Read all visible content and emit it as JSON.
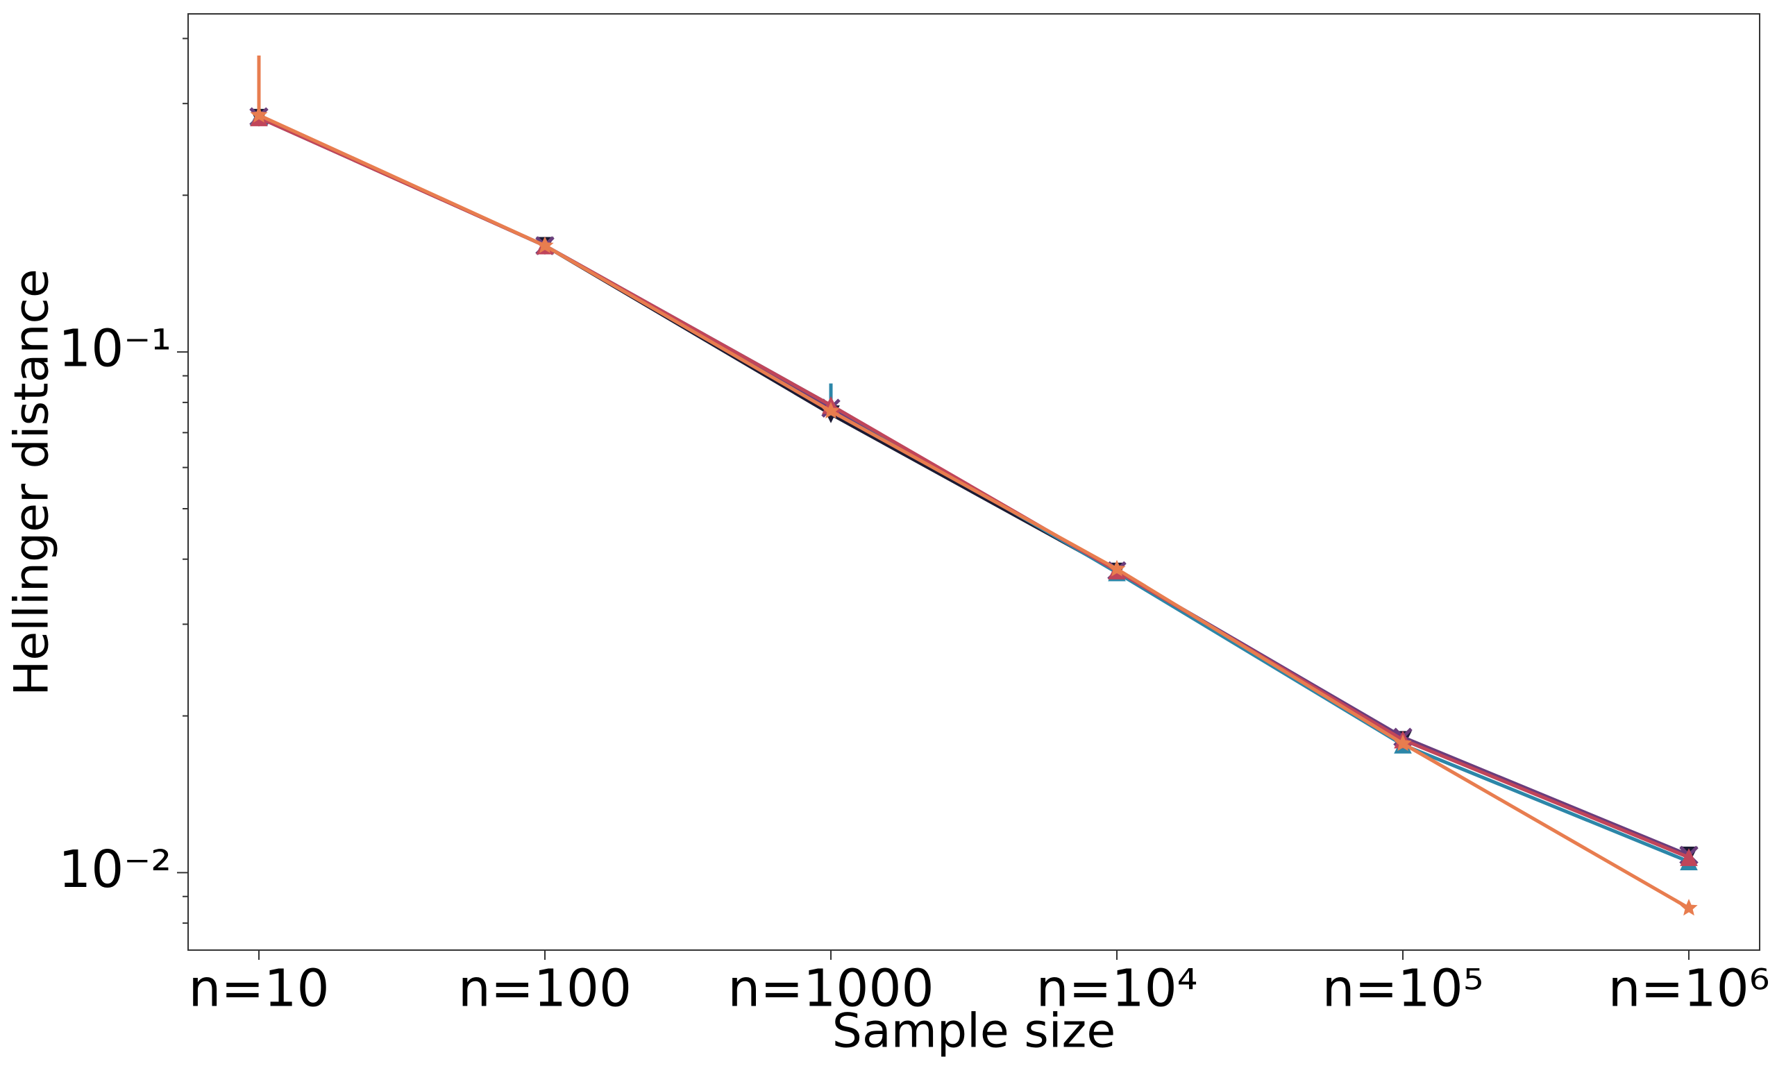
{
  "chart_data": {
    "type": "line",
    "x_label": "Sample size",
    "y_label": "Hellinger distance",
    "categories": [
      "n=10",
      "n=100",
      "n=1000",
      "n=10⁴",
      "n=10⁵",
      "n=10⁶"
    ],
    "log_y": true,
    "ylim": [
      0.0071,
      0.446
    ],
    "yticks": [
      {
        "value": 0.01,
        "label": "10⁻²"
      },
      {
        "value": 0.1,
        "label": "10⁻¹"
      }
    ],
    "yminorticks": [
      0.008,
      0.009,
      0.02,
      0.03,
      0.04,
      0.05,
      0.06,
      0.07,
      0.08,
      0.09,
      0.2,
      0.3,
      0.4
    ],
    "series": [
      {
        "color": "#1b1a33",
        "marker": "v",
        "values": [
          0.282,
          0.16,
          0.076,
          0.0379,
          0.018,
          0.0108
        ]
      },
      {
        "color": "#6a3d7c",
        "marker": "x",
        "values": [
          0.283,
          0.16,
          0.078,
          0.038,
          0.0182,
          0.0108
        ]
      },
      {
        "color": "#2c86a8",
        "marker": "^",
        "values": [
          0.283,
          0.16,
          0.079,
          0.0377,
          0.0176,
          0.0105
        ],
        "errors": [
          null,
          null,
          0.008,
          null,
          null,
          null
        ]
      },
      {
        "color": "#c0455a",
        "marker": "^",
        "values": [
          0.282,
          0.16,
          0.079,
          0.038,
          0.018,
          0.0107
        ]
      },
      {
        "color": "#e87d4f",
        "marker": "*",
        "values": [
          0.285,
          0.16,
          0.077,
          0.0383,
          0.0177,
          0.00855
        ],
        "errors": [
          0.086,
          null,
          null,
          null,
          null,
          null
        ]
      }
    ]
  }
}
